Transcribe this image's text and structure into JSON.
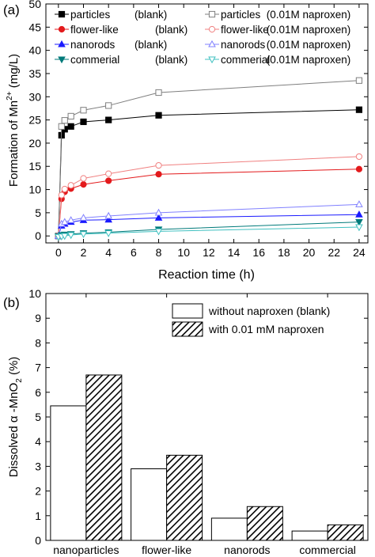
{
  "chart_data": [
    {
      "type": "line",
      "panel_label": "(a)",
      "xlabel": "Reaction time (h)",
      "ylabel_main": "Formation of Mn",
      "ylabel_sup": "2+",
      "ylabel_unit": " (mg/L)",
      "xlim": [
        -1,
        24.7
      ],
      "ylim": [
        -1.5,
        50
      ],
      "xticks": [
        0,
        2,
        4,
        6,
        8,
        10,
        12,
        14,
        16,
        18,
        20,
        22,
        24
      ],
      "yticks": [
        0,
        5,
        10,
        15,
        20,
        25,
        30,
        35,
        40,
        45,
        50
      ],
      "series": [
        {
          "name": "particles",
          "tag": "(blank)",
          "color": "#000000",
          "marker": "square",
          "filled": true,
          "x": [
            0,
            0.25,
            0.5,
            1,
            2,
            4,
            8,
            24
          ],
          "y": [
            0,
            21.7,
            23.0,
            23.6,
            24.6,
            25.0,
            26.0,
            27.2
          ]
        },
        {
          "name": "particles",
          "tag": "(0.01M naproxen)",
          "color": "#7f7f7f",
          "marker": "square",
          "filled": false,
          "x": [
            0,
            0.25,
            0.5,
            1,
            2,
            4,
            8,
            24
          ],
          "y": [
            0,
            23.6,
            24.9,
            25.8,
            27.1,
            28.1,
            30.9,
            33.5
          ]
        },
        {
          "name": "flower-like",
          "tag": "(blank)",
          "color": "#e31a1c",
          "marker": "circle",
          "filled": true,
          "x": [
            0,
            0.25,
            0.5,
            1,
            2,
            4,
            8,
            24
          ],
          "y": [
            0,
            8.0,
            9.5,
            10.2,
            11.1,
            11.9,
            13.3,
            14.4
          ]
        },
        {
          "name": "flower-like",
          "tag": "(0.01M naproxen)",
          "color": "#f08080",
          "marker": "circle",
          "filled": false,
          "x": [
            0,
            0.25,
            0.5,
            1,
            2,
            4,
            8,
            24
          ],
          "y": [
            0,
            8.8,
            10.1,
            10.9,
            12.4,
            13.4,
            15.2,
            17.1
          ]
        },
        {
          "name": "nanorods",
          "tag": "(blank)",
          "color": "#1a1aff",
          "marker": "triangle-up",
          "filled": true,
          "x": [
            0,
            0.25,
            0.5,
            1,
            2,
            4,
            8,
            24
          ],
          "y": [
            0,
            2.2,
            2.6,
            3.0,
            3.4,
            3.5,
            3.9,
            4.6
          ]
        },
        {
          "name": "nanorods",
          "tag": "(0.01M naproxen)",
          "color": "#8080ff",
          "marker": "triangle-up",
          "filled": false,
          "x": [
            0,
            0.25,
            0.5,
            1,
            2,
            4,
            8,
            24
          ],
          "y": [
            0,
            2.6,
            3.0,
            3.4,
            3.9,
            4.3,
            5.0,
            6.8
          ]
        },
        {
          "name": "commerial",
          "tag": "(blank)",
          "color": "#007a7a",
          "marker": "triangle-down",
          "filled": true,
          "x": [
            0,
            0.25,
            0.5,
            1,
            2,
            4,
            8,
            24
          ],
          "y": [
            -0.1,
            0.2,
            0.3,
            0.4,
            0.6,
            0.8,
            1.4,
            3.0
          ]
        },
        {
          "name": "commerial",
          "tag": "(0.01M naproxen)",
          "color": "#40c0c0",
          "marker": "triangle-down",
          "filled": false,
          "x": [
            0,
            0.25,
            0.5,
            1,
            2,
            4,
            8,
            24
          ],
          "y": [
            -0.2,
            -0.1,
            0.0,
            0.2,
            0.4,
            0.6,
            1.0,
            1.9
          ]
        }
      ]
    },
    {
      "type": "bar",
      "panel_label": "(b)",
      "xlabel": "",
      "ylabel_main": "Dissolved α -MnO",
      "ylabel_sub": "2",
      "ylabel_unit": " (%)",
      "ylim": [
        0,
        10
      ],
      "yticks": [
        0,
        1,
        2,
        3,
        4,
        5,
        6,
        7,
        8,
        9,
        10
      ],
      "categories": [
        "nanoparticles",
        "flower-like",
        "nanorods",
        "commercial"
      ],
      "series": [
        {
          "name": "without naproxen (blank)",
          "pattern": "none",
          "values": [
            5.45,
            2.9,
            0.9,
            0.38
          ]
        },
        {
          "name": "with 0.01 mM naproxen",
          "pattern": "hatch",
          "values": [
            6.7,
            3.45,
            1.37,
            0.63
          ]
        }
      ]
    }
  ]
}
